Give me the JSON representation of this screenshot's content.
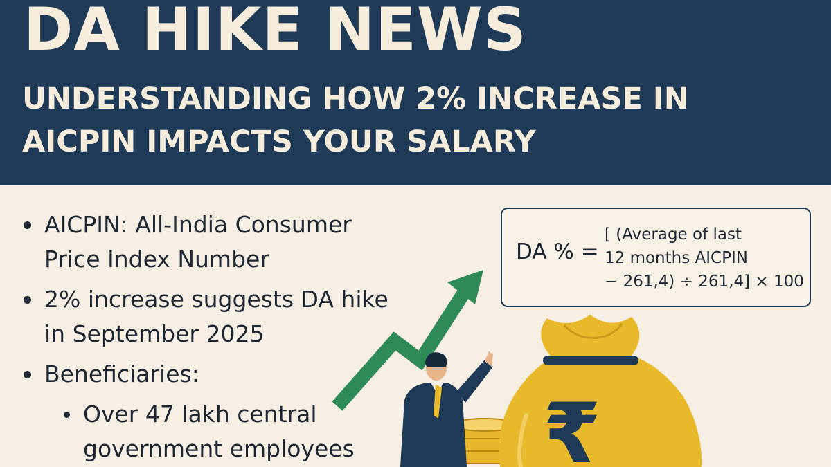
{
  "header": {
    "title": "DA HIKE NEWS",
    "subtitle": "UNDERSTANDING HOW 2% INCREASE IN AICPIN IMPACTS YOUR SALARY"
  },
  "bullets": [
    {
      "text": "AICPIN: All-India Consumer Price Index Number"
    },
    {
      "text": "2% increase suggests DA hike in September 2025"
    },
    {
      "text": "Beneficiaries:"
    }
  ],
  "sub_bullets": [
    {
      "text": "Over 47 lakh central government employees"
    }
  ],
  "formula": {
    "lhs": "DA % =",
    "rhs_line1": "[ (Average of last",
    "rhs_line2": "12 months AICPIN",
    "rhs_line3": "− 261,4) ÷ 261,4] × 100"
  },
  "illustration": {
    "money_bag_symbol": "₹",
    "arrow_icon": "trend-up-arrow-icon",
    "colors": {
      "header_bg": "#1f3a56",
      "page_bg": "#f7efe3",
      "arrow": "#2e8b57",
      "gold": "#e9b92c"
    }
  }
}
